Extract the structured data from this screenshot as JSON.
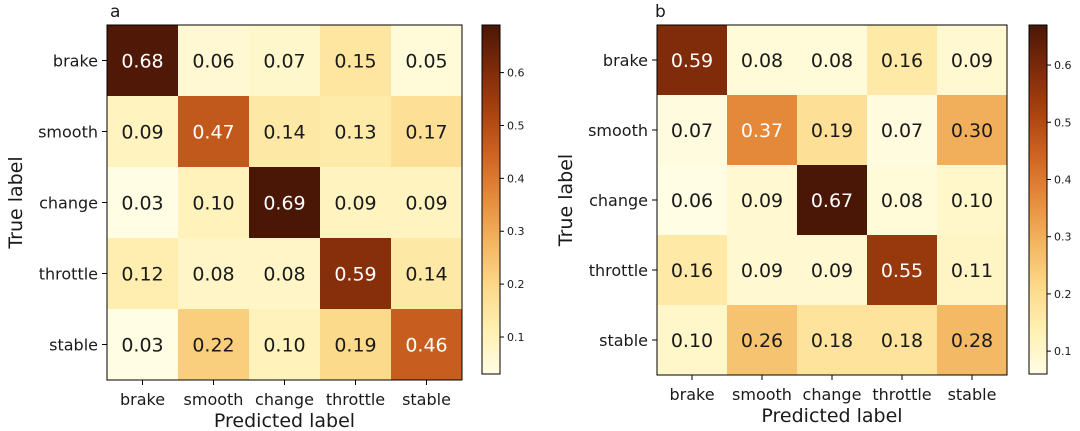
{
  "figure": {
    "colormap": [
      "#fffde4",
      "#fff0b3",
      "#fcd98a",
      "#f3b560",
      "#e68c3c",
      "#cf6422",
      "#a9420f",
      "#7e2a0a",
      "#4a1605"
    ],
    "text_dark": "#1a1a1a",
    "text_light": "#ffffff"
  },
  "chart_data": [
    {
      "type": "heatmap",
      "panel": "a",
      "categories": [
        "brake",
        "smooth",
        "change",
        "throttle",
        "stable"
      ],
      "xlabel": "Predicted label",
      "ylabel": "True label",
      "matrix": [
        [
          0.68,
          0.06,
          0.07,
          0.15,
          0.05
        ],
        [
          0.09,
          0.47,
          0.14,
          0.13,
          0.17
        ],
        [
          0.03,
          0.1,
          0.69,
          0.09,
          0.09
        ],
        [
          0.12,
          0.08,
          0.08,
          0.59,
          0.14
        ],
        [
          0.03,
          0.22,
          0.1,
          0.19,
          0.46
        ]
      ],
      "vmin": 0.03,
      "vmax": 0.69,
      "colorbar_ticks": [
        0.1,
        0.2,
        0.3,
        0.4,
        0.5,
        0.6
      ]
    },
    {
      "type": "heatmap",
      "panel": "b",
      "categories": [
        "brake",
        "smooth",
        "change",
        "throttle",
        "stable"
      ],
      "xlabel": "Predicted label",
      "ylabel": "True label",
      "matrix": [
        [
          0.59,
          0.08,
          0.08,
          0.16,
          0.09
        ],
        [
          0.07,
          0.37,
          0.19,
          0.07,
          0.3
        ],
        [
          0.06,
          0.09,
          0.67,
          0.08,
          0.1
        ],
        [
          0.16,
          0.09,
          0.09,
          0.55,
          0.11
        ],
        [
          0.1,
          0.26,
          0.18,
          0.18,
          0.28
        ]
      ],
      "vmin": 0.06,
      "vmax": 0.67,
      "colorbar_ticks": [
        0.1,
        0.2,
        0.3,
        0.4,
        0.5,
        0.6
      ]
    }
  ]
}
